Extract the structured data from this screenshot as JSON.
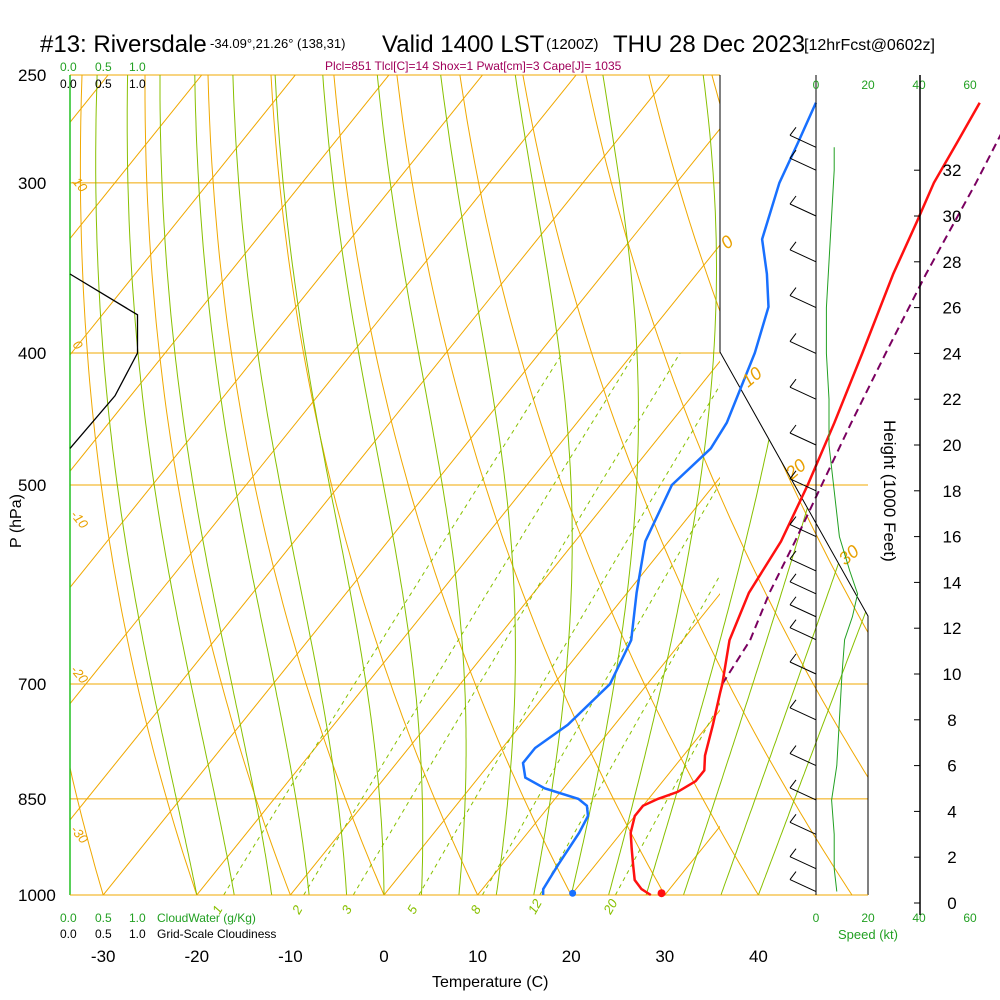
{
  "header": {
    "station": "#13: Riversdale",
    "coords": "-34.09°,21.26° (138,31)",
    "valid": "Valid 1400 LST",
    "utc": "(1200Z)",
    "date": "THU 28 Dec 2023",
    "forecast": "[12hrFcst@0602z]",
    "indices": "Plcl=851 Tlcl[C]=14 Shox=1 Pwat[cm]=3 Cape[J]= 1035"
  },
  "colors": {
    "temperature": "#ff1010",
    "dewpoint": "#1870ff",
    "parcel": "#7a0060",
    "isotherm": "#f0a800",
    "adiabat": "#88c000",
    "mixing": "#88c000",
    "isobar": "#f0a800",
    "wind": "#22a022"
  },
  "chart_data": {
    "type": "line",
    "title": "#13: Riversdale  Valid 1400 LST (1200Z) THU 28 Dec 2023 [12hrFcst@0602z]",
    "xlabel": "Temperature (C)",
    "ylabel": "P (hPa)",
    "y2label": "Height (1000 Feet)",
    "x_ticks": [
      "-30",
      "-20",
      "-10",
      "0",
      "10",
      "20",
      "30",
      "40"
    ],
    "p_ticks": [
      "250",
      "300",
      "400",
      "500",
      "700",
      "850",
      "1000"
    ],
    "height_ticks": [
      "0",
      "2",
      "4",
      "6",
      "8",
      "10",
      "12",
      "14",
      "16",
      "18",
      "20",
      "22",
      "24",
      "26",
      "28",
      "30",
      "32"
    ],
    "cloud_scale_top": [
      "0.0",
      "0.5",
      "1.0"
    ],
    "cloud_scale_top2": [
      "0.0",
      "0.5",
      "1.0"
    ],
    "cloud_scale_bottom": [
      "0.0",
      "0.5",
      "1.0"
    ],
    "cloud_scale_bottom2": [
      "0.0",
      "0.5",
      "1.0"
    ],
    "cloudwater_label": "CloudWater (g/Kg)",
    "cloudiness_label": "Grid-Scale Cloudiness",
    "speed_label": "Speed (kt)",
    "speed_ticks": [
      "0",
      "20",
      "40",
      "60"
    ],
    "isotherm_labels": [
      "10",
      "0",
      "-10",
      "-20",
      "-30"
    ],
    "theta_labels": [
      "0",
      "10",
      "20",
      "30"
    ],
    "mixing_labels": [
      "1",
      "2",
      "3",
      "5",
      "8",
      "12",
      "20"
    ],
    "series": [
      {
        "name": "temperature",
        "points": [
          {
            "p": 1000,
            "t": 28.5
          },
          {
            "p": 990,
            "t": 27.0
          },
          {
            "p": 975,
            "t": 25.5
          },
          {
            "p": 950,
            "t": 24.0
          },
          {
            "p": 925,
            "t": 22.5
          },
          {
            "p": 900,
            "t": 21.0
          },
          {
            "p": 875,
            "t": 20.0
          },
          {
            "p": 860,
            "t": 20.0
          },
          {
            "p": 850,
            "t": 21.0
          },
          {
            "p": 840,
            "t": 22.5
          },
          {
            "p": 825,
            "t": 23.5
          },
          {
            "p": 810,
            "t": 23.5
          },
          {
            "p": 790,
            "t": 22.3
          },
          {
            "p": 750,
            "t": 20.5
          },
          {
            "p": 710,
            "t": 18.5
          },
          {
            "p": 700,
            "t": 18.0
          },
          {
            "p": 650,
            "t": 15.0
          },
          {
            "p": 600,
            "t": 13.0
          },
          {
            "p": 550,
            "t": 12.0
          },
          {
            "p": 500,
            "t": 10.0
          },
          {
            "p": 450,
            "t": 7.5
          },
          {
            "p": 400,
            "t": 4.5
          },
          {
            "p": 350,
            "t": 1.0
          },
          {
            "p": 320,
            "t": -1.0
          },
          {
            "p": 300,
            "t": -2.5
          },
          {
            "p": 280,
            "t": -3.5
          },
          {
            "p": 262,
            "t": -4.5
          }
        ]
      },
      {
        "name": "dewpoint",
        "points": [
          {
            "p": 1000,
            "t": 17.0
          },
          {
            "p": 990,
            "t": 16.5
          },
          {
            "p": 950,
            "t": 16.0
          },
          {
            "p": 900,
            "t": 15.5
          },
          {
            "p": 875,
            "t": 15.0
          },
          {
            "p": 860,
            "t": 14.0
          },
          {
            "p": 850,
            "t": 12.5
          },
          {
            "p": 835,
            "t": 8.0
          },
          {
            "p": 820,
            "t": 5.0
          },
          {
            "p": 800,
            "t": 3.5
          },
          {
            "p": 780,
            "t": 3.5
          },
          {
            "p": 750,
            "t": 5.0
          },
          {
            "p": 700,
            "t": 6.0
          },
          {
            "p": 650,
            "t": 4.5
          },
          {
            "p": 600,
            "t": 1.0
          },
          {
            "p": 550,
            "t": -2.5
          },
          {
            "p": 500,
            "t": -4.5
          },
          {
            "p": 470,
            "t": -3.5
          },
          {
            "p": 450,
            "t": -4.0
          },
          {
            "p": 400,
            "t": -7.0
          },
          {
            "p": 370,
            "t": -9.5
          },
          {
            "p": 350,
            "t": -12.5
          },
          {
            "p": 330,
            "t": -16.0
          },
          {
            "p": 300,
            "t": -19.0
          },
          {
            "p": 280,
            "t": -20.5
          },
          {
            "p": 262,
            "t": -22.0
          }
        ]
      },
      {
        "name": "parcel",
        "points": [
          {
            "p": 700,
            "t": 18.0
          },
          {
            "p": 650,
            "t": 17.2
          },
          {
            "p": 600,
            "t": 15.2
          },
          {
            "p": 550,
            "t": 13.5
          },
          {
            "p": 500,
            "t": 11.5
          },
          {
            "p": 450,
            "t": 9.3
          },
          {
            "p": 400,
            "t": 7.0
          },
          {
            "p": 350,
            "t": 4.5
          },
          {
            "p": 300,
            "t": 2.0
          },
          {
            "p": 262,
            "t": -0.5
          }
        ]
      }
    ],
    "surface_points": [
      {
        "name": "surface temperature",
        "t": 29.5,
        "p": 997
      },
      {
        "name": "surface dewpoint",
        "t": 20.0,
        "p": 997
      }
    ],
    "wind_speed_profile": [
      {
        "height_kft": 0.5,
        "speed": 8
      },
      {
        "height_kft": 1.5,
        "speed": 7
      },
      {
        "height_kft": 3.0,
        "speed": 7
      },
      {
        "height_kft": 4.5,
        "speed": 6
      },
      {
        "height_kft": 6.0,
        "speed": 8
      },
      {
        "height_kft": 8.0,
        "speed": 9
      },
      {
        "height_kft": 10.0,
        "speed": 10
      },
      {
        "height_kft": 11.5,
        "speed": 11
      },
      {
        "height_kft": 12.5,
        "speed": 14
      },
      {
        "height_kft": 13.5,
        "speed": 16
      },
      {
        "height_kft": 14.5,
        "speed": 13
      },
      {
        "height_kft": 16.0,
        "speed": 9
      },
      {
        "height_kft": 18.0,
        "speed": 7
      },
      {
        "height_kft": 20.0,
        "speed": 5
      },
      {
        "height_kft": 22.0,
        "speed": 5
      },
      {
        "height_kft": 24.0,
        "speed": 4
      },
      {
        "height_kft": 26.0,
        "speed": 4
      },
      {
        "height_kft": 28.0,
        "speed": 5
      },
      {
        "height_kft": 30.0,
        "speed": 6
      },
      {
        "height_kft": 32.0,
        "speed": 7
      },
      {
        "height_kft": 33.0,
        "speed": 7
      }
    ],
    "cloudiness_profile": [
      {
        "p": 350,
        "v": 0.0
      },
      {
        "p": 375,
        "v": 0.9
      },
      {
        "p": 400,
        "v": 0.9
      },
      {
        "p": 430,
        "v": 0.6
      },
      {
        "p": 470,
        "v": 0.0
      }
    ]
  }
}
